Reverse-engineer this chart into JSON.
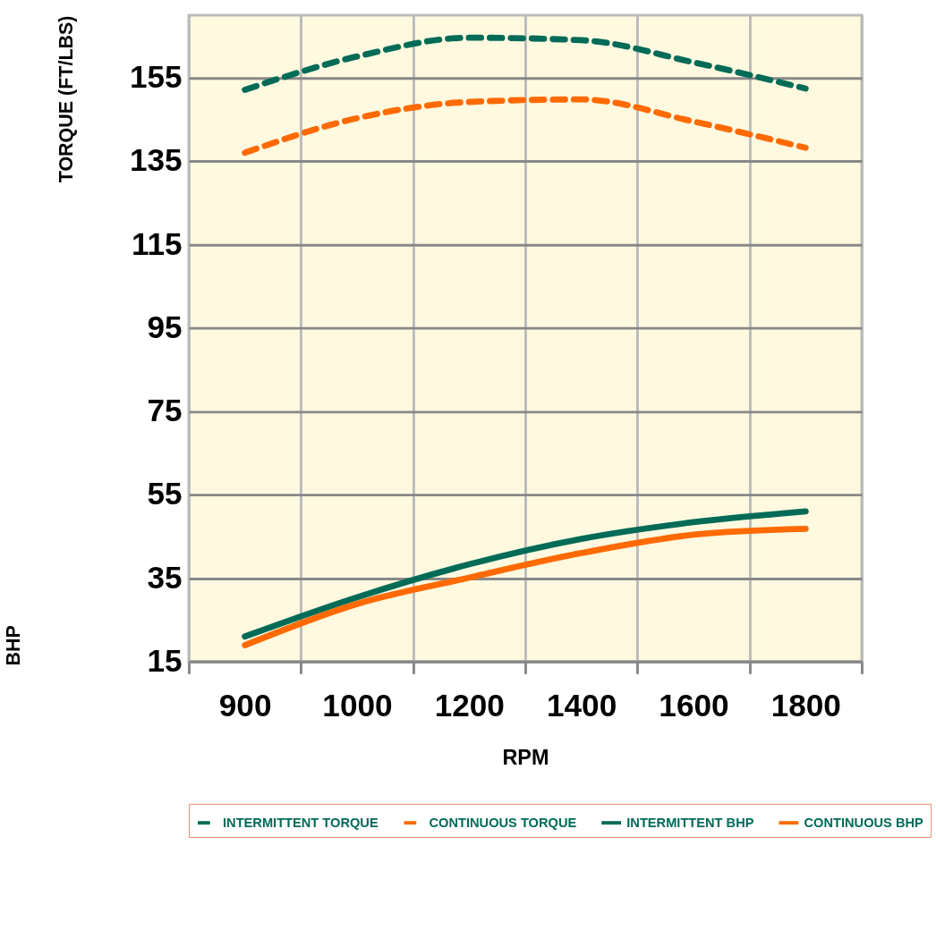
{
  "chart_data": {
    "type": "line",
    "xlabel": "RPM",
    "ylabel": "TORQUE (FT/LBS)",
    "annotations": [
      "BHP"
    ],
    "categories": [
      "900",
      "1000",
      "1200",
      "1400",
      "1600",
      "1800"
    ],
    "ylim": [
      15,
      170
    ],
    "yticks": [
      15,
      35,
      55,
      75,
      95,
      115,
      135,
      155
    ],
    "grid": true,
    "legend": "bottom",
    "marker": "none",
    "series": [
      {
        "name": "INTERMITTENT TORQUE",
        "color": "#006b57",
        "line_style": "dashed",
        "values": [
          152.1,
          160.1,
          164.6,
          164.0,
          158.7,
          152.4
        ]
      },
      {
        "name": "CONTINUOUS TORQUE",
        "color": "#ff6a00",
        "line_style": "dashed",
        "values": [
          137.0,
          145.3,
          149.2,
          149.8,
          144.5,
          138.2
        ]
      },
      {
        "name": "INTERMITTENT BHP",
        "color": "#006b57",
        "line_style": "solid",
        "values": [
          21.0,
          30.4,
          38.3,
          44.4,
          48.4,
          51.0
        ]
      },
      {
        "name": "CONTINUOUS BHP",
        "color": "#ff6a00",
        "line_style": "solid",
        "values": [
          18.9,
          28.8,
          35.1,
          41.0,
          45.4,
          46.8
        ]
      }
    ]
  }
}
